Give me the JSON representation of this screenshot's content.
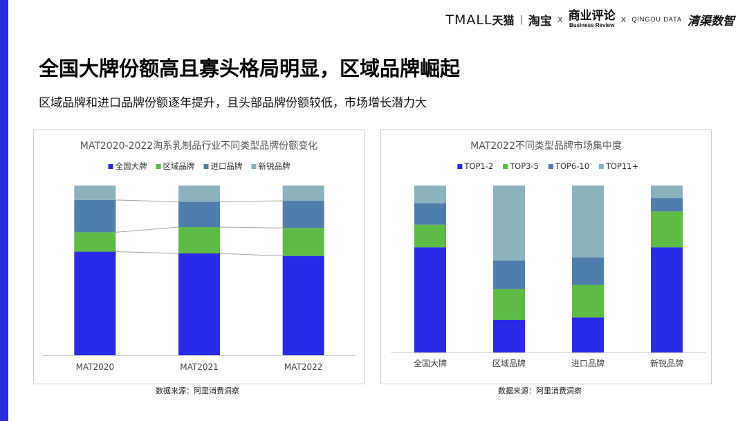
{
  "header": {
    "brands": {
      "tmall_en": "TMALL",
      "tmall_zh": "天猫",
      "taobao": "淘宝",
      "cross": "x",
      "business_review_zh": "商业评论",
      "business_review_en": "Business Review",
      "qingdou_en": "QINGOU DATA",
      "qingdou_zh": "清渠数智"
    }
  },
  "page": {
    "title": "全国大牌份额高且寡头格局明显，区域品牌崛起",
    "subtitle": "区域品牌和进口品牌份额逐年提升，且头部品牌份额较低，市场增长潜力大"
  },
  "sources": [
    "数据来源：阿里消费洞察",
    "数据来源：阿里消费洞察"
  ],
  "chart_data": [
    {
      "type": "bar",
      "stacked": true,
      "normalized": true,
      "title": "MAT2020-2022淘系乳制品行业不同类型品牌份额变化",
      "categories": [
        "MAT2020",
        "MAT2021",
        "MAT2022"
      ],
      "series": [
        {
          "name": "全国大牌",
          "color": "#2a2ae6",
          "values": [
            0.61,
            0.6,
            0.585
          ]
        },
        {
          "name": "区域品牌",
          "color": "#5dbb46",
          "values": [
            0.115,
            0.155,
            0.165
          ]
        },
        {
          "name": "进口品牌",
          "color": "#4f7dac",
          "values": [
            0.19,
            0.15,
            0.16
          ]
        },
        {
          "name": "新锐品牌",
          "color": "#8bb2bd",
          "values": [
            0.085,
            0.095,
            0.09
          ]
        }
      ],
      "ylim": [
        0,
        1
      ],
      "legend_position": "top",
      "connector_lines": true,
      "grid": false
    },
    {
      "type": "bar",
      "stacked": true,
      "normalized": true,
      "title": "MAT2022不同类型品牌市场集中度",
      "categories": [
        "全国大牌",
        "区域品牌",
        "进口品牌",
        "新锐品牌"
      ],
      "series": [
        {
          "name": "TOP1-2",
          "color": "#2a2ae6",
          "values": [
            0.63,
            0.195,
            0.21,
            0.63
          ]
        },
        {
          "name": "TOP3-5",
          "color": "#5dbb46",
          "values": [
            0.135,
            0.185,
            0.195,
            0.215
          ]
        },
        {
          "name": "TOP6-10",
          "color": "#4f7dac",
          "values": [
            0.13,
            0.17,
            0.165,
            0.08
          ]
        },
        {
          "name": "TOP11+",
          "color": "#8bb2bd",
          "values": [
            0.105,
            0.45,
            0.43,
            0.075
          ]
        }
      ],
      "ylim": [
        0,
        1
      ],
      "legend_position": "top",
      "grid": false
    }
  ]
}
